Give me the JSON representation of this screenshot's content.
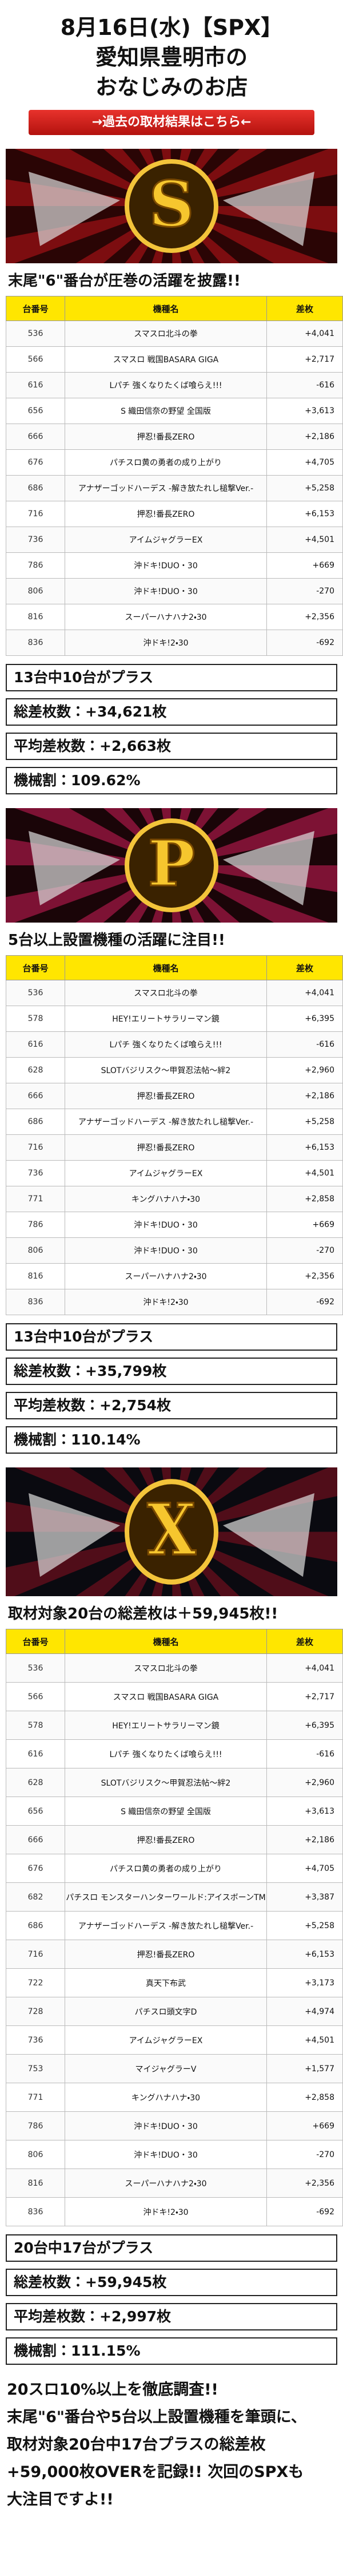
{
  "header": {
    "date_line": "8月16日(水)【SPX】",
    "location": "愛知県豊明市の",
    "shop": "おなじみのお店"
  },
  "link_banner": "→過去の取材結果はこちら←",
  "sections": [
    {
      "emblem": "S",
      "heading": "末尾\"6\"番台が圧巻の活躍を披露!!",
      "columns": [
        "台番号",
        "機種名",
        "差枚"
      ],
      "rows": [
        [
          "536",
          "スマスロ北斗の拳",
          "+4,041"
        ],
        [
          "566",
          "スマスロ 戦国BASARA GIGA",
          "+2,717"
        ],
        [
          "616",
          "Lパチ 強くなりたくば喰らえ!!!",
          "-616"
        ],
        [
          "656",
          "S 織田信奈の野望 全国版",
          "+3,613"
        ],
        [
          "666",
          "押忍!番長ZERO",
          "+2,186"
        ],
        [
          "676",
          "パチスロ黄の勇者の成り上がり",
          "+4,705"
        ],
        [
          "686",
          "アナザーゴッドハーデス -解き放たれし槌撃Ver.-",
          "+5,258"
        ],
        [
          "716",
          "押忍!番長ZERO",
          "+6,153"
        ],
        [
          "736",
          "アイムジャグラーEX",
          "+4,501"
        ],
        [
          "786",
          "沖ドキ!DUO・30",
          "+669"
        ],
        [
          "806",
          "沖ドキ!DUO・30",
          "-270"
        ],
        [
          "816",
          "スーパーハナハナ2・30",
          "+2,356"
        ],
        [
          "836",
          "沖ドキ!2・30",
          "-692"
        ]
      ],
      "summary": [
        "13台中10台がプラス",
        "総差枚数：+34,621枚",
        "平均差枚数：+2,663枚",
        "機械割：109.62%"
      ]
    },
    {
      "emblem": "P",
      "heading": "5台以上設置機種の活躍に注目!!",
      "columns": [
        "台番号",
        "機種名",
        "差枚"
      ],
      "rows": [
        [
          "536",
          "スマスロ北斗の拳",
          "+4,041"
        ],
        [
          "578",
          "HEY!エリートサラリーマン鏡",
          "+6,395"
        ],
        [
          "616",
          "Lパチ 強くなりたくば喰らえ!!!",
          "-616"
        ],
        [
          "628",
          "SLOTバジリスク〜甲賀忍法帖〜絆2",
          "+2,960"
        ],
        [
          "666",
          "押忍!番長ZERO",
          "+2,186"
        ],
        [
          "686",
          "アナザーゴッドハーデス -解き放たれし槌撃Ver.-",
          "+5,258"
        ],
        [
          "716",
          "押忍!番長ZERO",
          "+6,153"
        ],
        [
          "736",
          "アイムジャグラーEX",
          "+4,501"
        ],
        [
          "771",
          "キングハナハナ・30",
          "+2,858"
        ],
        [
          "786",
          "沖ドキ!DUO・30",
          "+669"
        ],
        [
          "806",
          "沖ドキ!DUO・30",
          "-270"
        ],
        [
          "816",
          "スーパーハナハナ2・30",
          "+2,356"
        ],
        [
          "836",
          "沖ドキ!2・30",
          "-692"
        ]
      ],
      "summary": [
        "13台中10台がプラス",
        "総差枚数：+35,799枚",
        "平均差枚数：+2,754枚",
        "機械割：110.14%"
      ]
    },
    {
      "emblem": "X",
      "heading": "取材対象20台の総差枚は＋59,945枚!!",
      "columns": [
        "台番号",
        "機種名",
        "差枚"
      ],
      "rows": [
        [
          "536",
          "スマスロ北斗の拳",
          "+4,041"
        ],
        [
          "566",
          "スマスロ 戦国BASARA GIGA",
          "+2,717"
        ],
        [
          "578",
          "HEY!エリートサラリーマン鏡",
          "+6,395"
        ],
        [
          "616",
          "Lパチ 強くなりたくば喰らえ!!!",
          "-616"
        ],
        [
          "628",
          "SLOTバジリスク〜甲賀忍法帖〜絆2",
          "+2,960"
        ],
        [
          "656",
          "S 織田信奈の野望 全国版",
          "+3,613"
        ],
        [
          "666",
          "押忍!番長ZERO",
          "+2,186"
        ],
        [
          "676",
          "パチスロ黄の勇者の成り上がり",
          "+4,705"
        ],
        [
          "682",
          "パチスロ モンスターハンターワールド:アイスボーンTM",
          "+3,387"
        ],
        [
          "686",
          "アナザーゴッドハーデス -解き放たれし槌撃Ver.-",
          "+5,258"
        ],
        [
          "716",
          "押忍!番長ZERO",
          "+6,153"
        ],
        [
          "722",
          "真天下布武",
          "+3,173"
        ],
        [
          "728",
          "パチスロ頭文字D",
          "+4,974"
        ],
        [
          "736",
          "アイムジャグラーEX",
          "+4,501"
        ],
        [
          "753",
          "マイジャグラーV",
          "+1,577"
        ],
        [
          "771",
          "キングハナハナ・30",
          "+2,858"
        ],
        [
          "786",
          "沖ドキ!DUO・30",
          "+669"
        ],
        [
          "806",
          "沖ドキ!DUO・30",
          "-270"
        ],
        [
          "816",
          "スーパーハナハナ2・30",
          "+2,356"
        ],
        [
          "836",
          "沖ドキ!2・30",
          "-692"
        ]
      ],
      "summary": [
        "20台中17台がプラス",
        "総差枚数：+59,945枚",
        "平均差枚数：+2,997枚",
        "機械割：111.15%"
      ]
    }
  ],
  "footer": [
    "20スロ10%以上を徹底調査!!",
    "末尾\"6\"番台や5台以上設置機種を筆頭に、",
    "取材対象20台中17台プラスの総差枚",
    "+59,000枚OVERを記録!! 次回のSPXも",
    "大注目ですよ!!"
  ]
}
